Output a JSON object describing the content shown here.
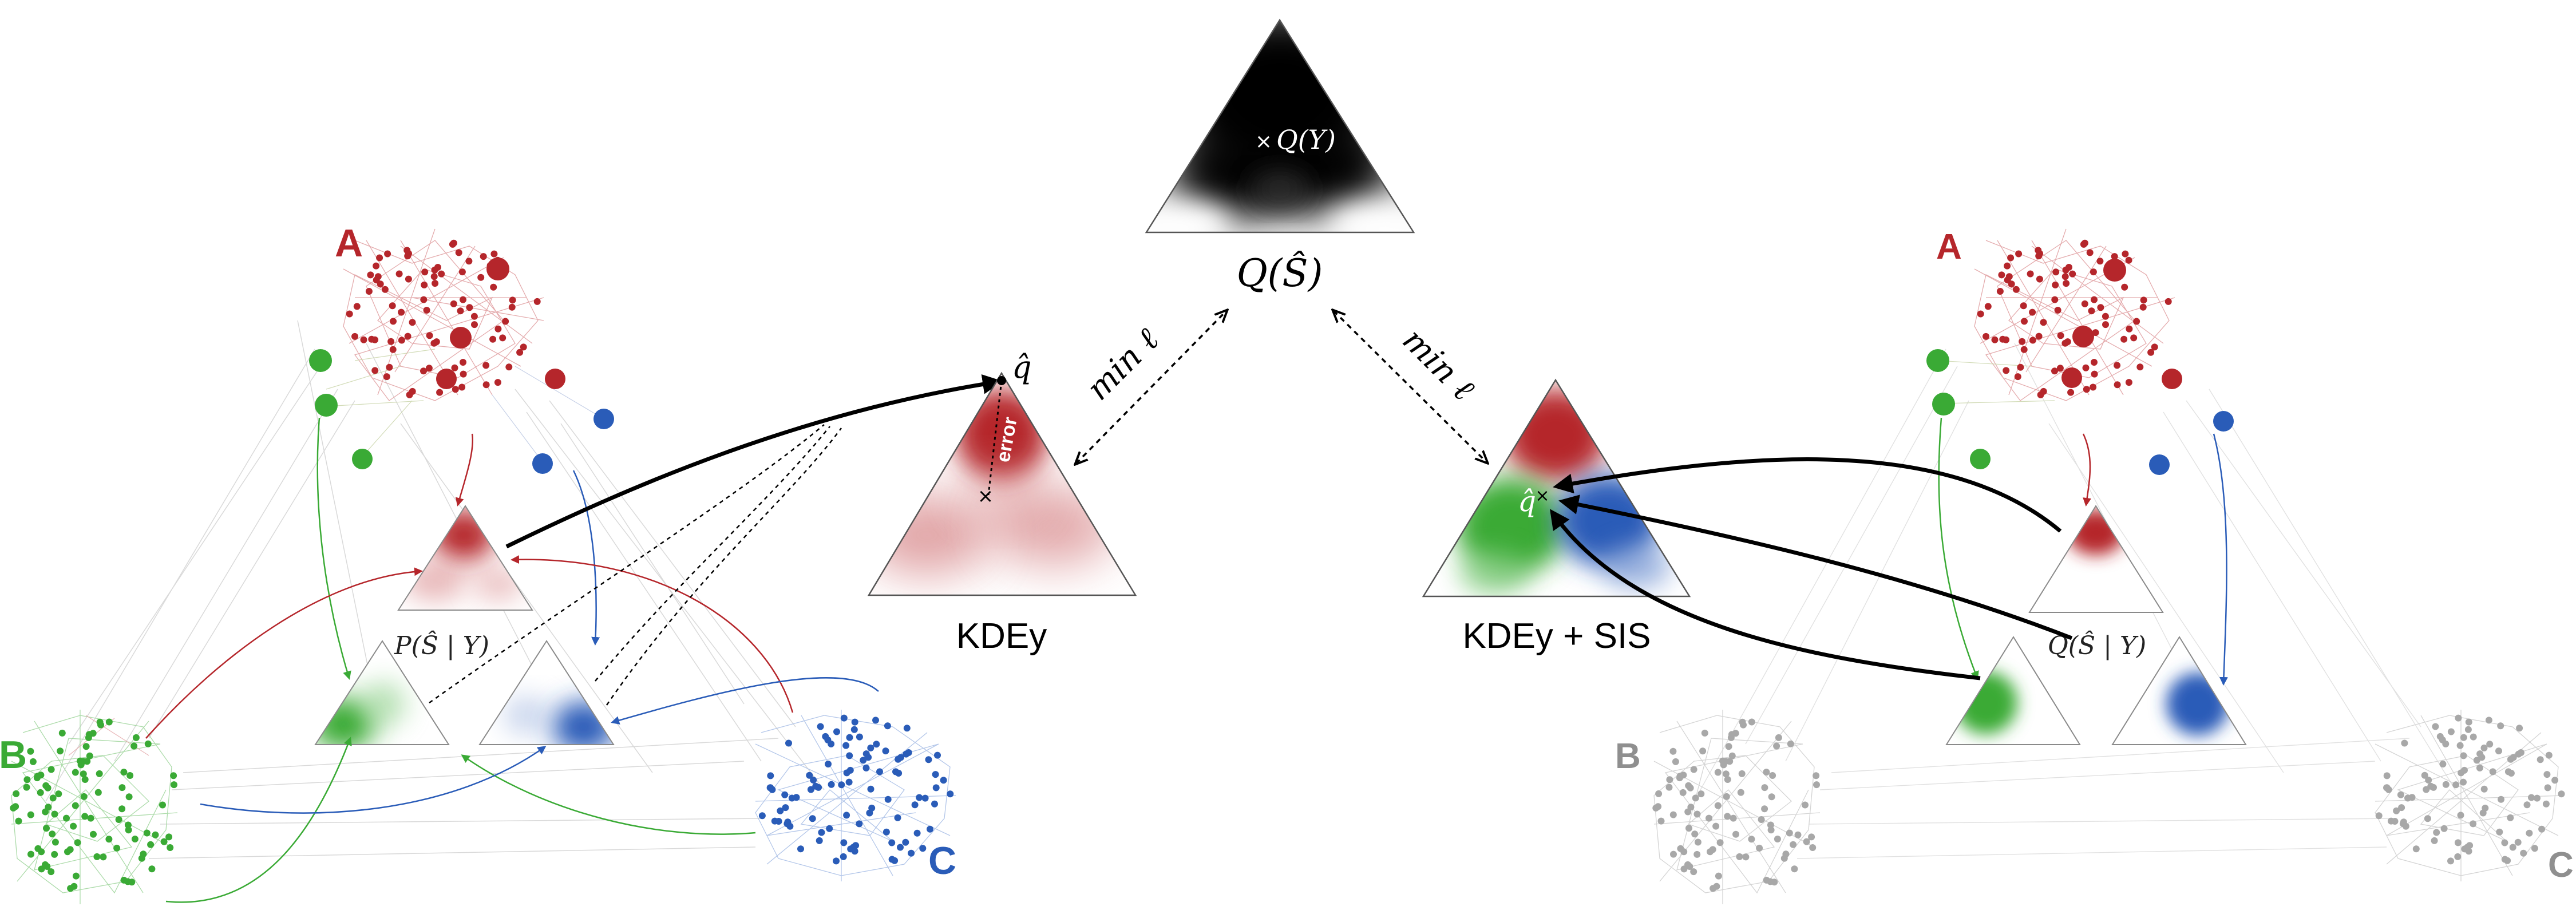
{
  "colors": {
    "class_a": "#b5262b",
    "class_b": "#3aaa35",
    "class_c": "#2a5cb8",
    "inactive": "#9a9a9a",
    "edge_light": "#d6d6d6",
    "ink": "#000000"
  },
  "top": {
    "point_label": "Q(Y)",
    "distribution_label": "Q(Ŝ)"
  },
  "left_method": {
    "caption": "KDEy",
    "estimate_label": "q̂",
    "error_label": "error",
    "loss_label": "min ℓ",
    "conditional_label": "P(Ŝ | Y)",
    "clusters": [
      {
        "label": "A",
        "color_key": "class_a"
      },
      {
        "label": "B",
        "color_key": "class_b"
      },
      {
        "label": "C",
        "color_key": "class_c"
      }
    ]
  },
  "right_method": {
    "caption": "KDEy + SIS",
    "estimate_label": "q̂",
    "loss_label": "min ℓ",
    "conditional_label": "Q(Ŝ | Y)",
    "clusters": [
      {
        "label": "A",
        "color_key": "class_a"
      },
      {
        "label": "B",
        "color_key": "inactive"
      },
      {
        "label": "C",
        "color_key": "inactive"
      }
    ]
  }
}
